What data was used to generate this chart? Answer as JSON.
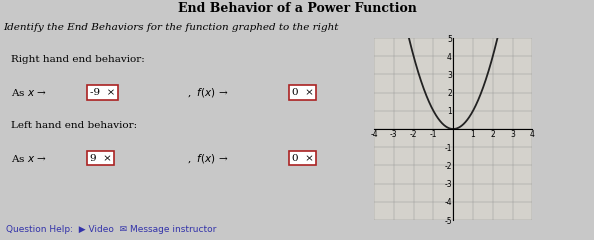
{
  "title": "End Behavior of a Power Function",
  "subtitle": "Identify the End Behaviors for the function graphed to the right",
  "right_label": "Right hand end behavior:",
  "right_x_val": "-9",
  "right_fx_val": "0",
  "left_label": "Left hand end behavior:",
  "left_x_val": "9",
  "left_fx_val": "0",
  "graph_xlim": [
    -4,
    4
  ],
  "graph_ylim": [
    -5,
    5
  ],
  "overall_bg": "#c8c8c8",
  "title_bg": "#c8c8c8",
  "content_bg": "#e0e0dc",
  "graph_bg": "#d4d2cc",
  "box_fill": "#ffffff",
  "box_edge": "#aa2222",
  "curve_color": "#222222",
  "text_color": "#000000",
  "footer_bg": "#e8e8e4",
  "footer_text_color": "#3333aa",
  "question_help_text": "Question Help:  ▶ Video  ✉ Message instructor",
  "figwidth": 5.94,
  "figheight": 2.4,
  "dpi": 100
}
